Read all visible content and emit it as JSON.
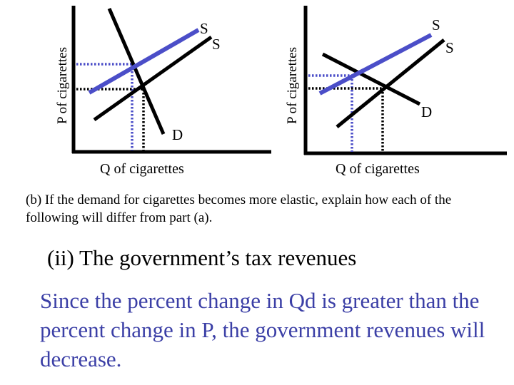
{
  "colors": {
    "supply_shifted": "#4b4ec8",
    "answer_text": "#3b3fa6",
    "axes": "#000000",
    "guides_black": "#000000",
    "guides_blue": "#4b4ec8"
  },
  "graphs": [
    {
      "name": "inelastic-demand-graph",
      "y_axis_label": "P of cigarettes",
      "x_axis_label": "Q of cigarettes",
      "supply_labels": [
        "S",
        "S"
      ],
      "demand_label": "D"
    },
    {
      "name": "elastic-demand-graph",
      "y_axis_label": "P of cigarettes",
      "x_axis_label": "Q of cigarettes",
      "supply_labels": [
        "S",
        "S"
      ],
      "demand_label": "D"
    }
  ],
  "question": "(b) If the demand for cigarettes becomes more elastic, explain how each of the following will differ from part (a).",
  "part_label": "(ii)  The government’s tax revenues",
  "answer": "Since the percent change in Qd is greater than the percent change in P, the government revenues will decrease."
}
